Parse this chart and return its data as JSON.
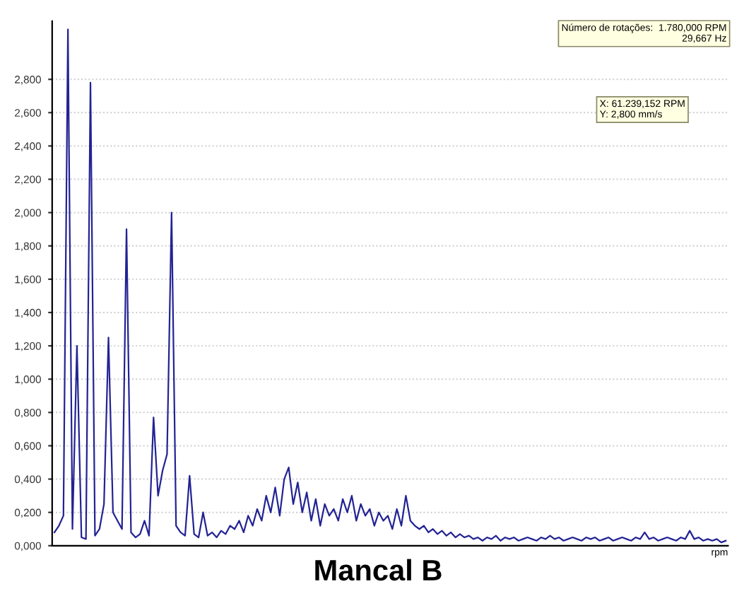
{
  "chart_data": {
    "type": "line",
    "title": "Mancal B",
    "xlabel": "rpm",
    "categories": [
      null,
      null,
      null,
      null,
      null,
      null,
      null,
      null,
      null,
      null,
      null,
      null,
      null,
      null,
      null,
      null,
      null,
      null,
      null,
      null,
      null,
      null,
      null,
      null,
      null,
      null,
      null,
      null,
      null,
      null,
      null,
      null,
      null,
      null,
      null,
      null,
      null,
      null,
      null,
      null,
      null,
      null,
      null,
      null,
      null,
      null,
      null,
      null,
      null,
      null,
      null,
      null,
      null,
      null,
      null,
      null,
      null,
      null,
      null,
      null,
      null,
      null,
      null,
      null,
      null,
      null,
      null,
      null,
      null,
      null,
      null,
      null,
      null,
      null,
      null,
      null,
      null,
      null,
      null,
      null,
      null,
      null,
      null,
      null,
      null,
      null,
      null,
      null,
      null,
      null,
      null,
      null,
      null,
      null,
      null,
      null,
      null,
      null,
      null,
      null,
      null,
      null,
      null,
      null,
      null,
      null,
      null,
      null,
      null,
      null,
      null,
      null,
      null,
      null,
      null,
      null,
      null,
      null,
      null,
      null,
      null,
      null,
      null,
      null,
      null,
      null,
      null,
      null,
      null,
      null,
      null,
      null,
      null,
      null,
      null,
      null,
      null,
      null,
      null,
      null,
      null,
      null,
      null,
      null,
      null,
      null,
      null,
      null,
      null,
      null
    ],
    "series": [
      {
        "color": "#232394",
        "values": [
          0.08,
          0.12,
          0.18,
          3.1,
          0.1,
          1.2,
          0.05,
          0.04,
          2.78,
          0.06,
          0.1,
          0.25,
          1.25,
          0.2,
          0.15,
          0.1,
          1.9,
          0.08,
          0.05,
          0.07,
          0.15,
          0.06,
          0.77,
          0.3,
          0.45,
          0.55,
          2.0,
          0.12,
          0.08,
          0.06,
          0.42,
          0.07,
          0.05,
          0.2,
          0.06,
          0.08,
          0.05,
          0.09,
          0.07,
          0.12,
          0.1,
          0.15,
          0.08,
          0.18,
          0.12,
          0.22,
          0.15,
          0.3,
          0.2,
          0.35,
          0.18,
          0.4,
          0.47,
          0.25,
          0.38,
          0.2,
          0.32,
          0.15,
          0.28,
          0.12,
          0.25,
          0.18,
          0.22,
          0.15,
          0.28,
          0.2,
          0.3,
          0.15,
          0.25,
          0.18,
          0.22,
          0.12,
          0.2,
          0.15,
          0.18,
          0.1,
          0.22,
          0.12,
          0.3,
          0.15,
          0.12,
          0.1,
          0.12,
          0.08,
          0.1,
          0.07,
          0.09,
          0.06,
          0.08,
          0.05,
          0.07,
          0.05,
          0.06,
          0.04,
          0.05,
          0.03,
          0.05,
          0.04,
          0.06,
          0.03,
          0.05,
          0.04,
          0.05,
          0.03,
          0.04,
          0.05,
          0.04,
          0.03,
          0.05,
          0.04,
          0.06,
          0.04,
          0.05,
          0.03,
          0.04,
          0.05,
          0.04,
          0.03,
          0.05,
          0.04,
          0.05,
          0.03,
          0.04,
          0.05,
          0.03,
          0.04,
          0.05,
          0.04,
          0.03,
          0.05,
          0.04,
          0.08,
          0.04,
          0.05,
          0.03,
          0.04,
          0.05,
          0.04,
          0.03,
          0.05,
          0.04,
          0.09,
          0.04,
          0.05,
          0.03,
          0.04,
          0.03,
          0.04,
          0.02,
          0.03
        ]
      }
    ],
    "ylim": [
      0,
      3.15
    ],
    "yticks": [
      {
        "value": 0,
        "label": "0,000"
      },
      {
        "value": 0.2,
        "label": "0,200"
      },
      {
        "value": 0.4,
        "label": "0,400"
      },
      {
        "value": 0.6,
        "label": "0,600"
      },
      {
        "value": 0.8,
        "label": "0,800"
      },
      {
        "value": 1.0,
        "label": "1,000"
      },
      {
        "value": 1.2,
        "label": "1,200"
      },
      {
        "value": 1.4,
        "label": "1,400"
      },
      {
        "value": 1.6,
        "label": "1,600"
      },
      {
        "value": 1.8,
        "label": "1,800"
      },
      {
        "value": 2.0,
        "label": "2,000"
      },
      {
        "value": 2.2,
        "label": "2,200"
      },
      {
        "value": 2.4,
        "label": "2,400"
      },
      {
        "value": 2.6,
        "label": "2,600"
      },
      {
        "value": 2.8,
        "label": "2,800"
      }
    ],
    "grid": "y",
    "annotations": [
      "Número de rotações:  1.780,000 RPM\n29,667 Hz",
      "X: 61.239,152 RPM\nY: 2,800 mm/s"
    ]
  }
}
